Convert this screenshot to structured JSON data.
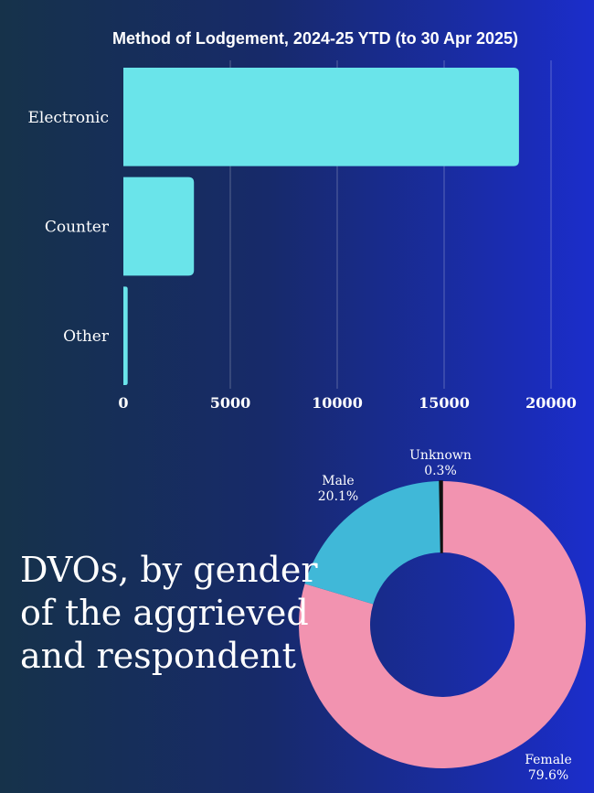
{
  "headline": {
    "lines": [
      "DVOs, by gender",
      "of the aggrieved",
      "and respondent"
    ]
  },
  "chart_data": [
    {
      "type": "bar",
      "orientation": "horizontal",
      "title": "Method of Lodgement, 2024-25 YTD (to 30 Apr 2025)",
      "categories": [
        "Electronic",
        "Counter",
        "Other"
      ],
      "values": [
        18500,
        3300,
        200
      ],
      "xlim": [
        0,
        20000
      ],
      "xticks": [
        0,
        5000,
        10000,
        15000,
        20000
      ],
      "grid": true,
      "bar_color": "#6ae4ea"
    },
    {
      "type": "pie",
      "style": "donut",
      "slices": [
        {
          "label": "Female",
          "value": 79.6,
          "display": "79.6%",
          "color": "#f293b0"
        },
        {
          "label": "Male",
          "value": 20.1,
          "display": "20.1%",
          "color": "#40b8d8"
        },
        {
          "label": "Unknown",
          "value": 0.3,
          "display": "0.3%",
          "color": "#111111"
        }
      ]
    }
  ]
}
